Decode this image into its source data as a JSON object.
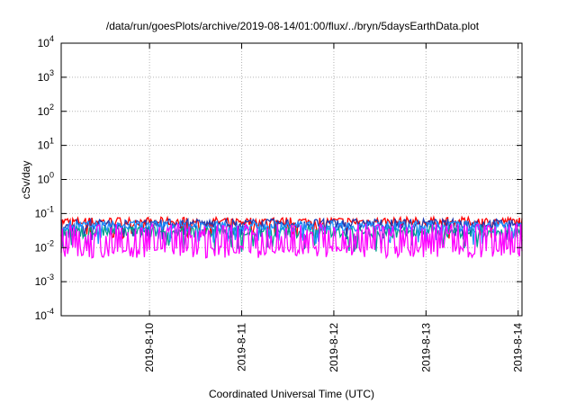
{
  "chart_data": {
    "type": "line",
    "title": "/data/run/goesPlots/archive/2019-08-14/01:00/flux/../bryn/5daysEarthData.plot",
    "xlabel": "Coordinated Universal Time (UTC)",
    "ylabel": "cSv/day",
    "yscale": "log",
    "ylim": [
      0.0001,
      10000
    ],
    "y_ticks": [
      {
        "value": 0.0001,
        "base": "10",
        "exp": "-4"
      },
      {
        "value": 0.001,
        "base": "10",
        "exp": "-3"
      },
      {
        "value": 0.01,
        "base": "10",
        "exp": "-2"
      },
      {
        "value": 0.1,
        "base": "10",
        "exp": "-1"
      },
      {
        "value": 1,
        "base": "10",
        "exp": "0"
      },
      {
        "value": 10,
        "base": "10",
        "exp": "1"
      },
      {
        "value": 100,
        "base": "10",
        "exp": "2"
      },
      {
        "value": 1000,
        "base": "10",
        "exp": "3"
      },
      {
        "value": 10000,
        "base": "10",
        "exp": "4"
      }
    ],
    "xlim": [
      "2019-08-09 01:00",
      "2019-08-14 01:00"
    ],
    "x_ticks": [
      {
        "label": "2019-8-10",
        "value": "2019-08-10 00:00"
      },
      {
        "label": "2019-8-11",
        "value": "2019-08-11 00:00"
      },
      {
        "label": "2019-8-12",
        "value": "2019-08-12 00:00"
      },
      {
        "label": "2019-8-13",
        "value": "2019-08-13 00:00"
      },
      {
        "label": "2019-8-14",
        "value": "2019-08-14 00:00"
      }
    ],
    "grid": true,
    "series": [
      {
        "color": "#ff0000",
        "typical": 0.05,
        "low": 0.03,
        "high": 0.1
      },
      {
        "color": "#1e3cb4",
        "typical": 0.04,
        "low": 0.025,
        "high": 0.09
      },
      {
        "color": "#00a08c",
        "typical": 0.025,
        "low": 0.012,
        "high": 0.06
      },
      {
        "color": "#1e90ff",
        "typical": 0.035,
        "low": 0.02,
        "high": 0.08
      },
      {
        "color": "#ff00ff",
        "typical": 0.008,
        "low": 0.005,
        "high": 0.05
      }
    ]
  }
}
